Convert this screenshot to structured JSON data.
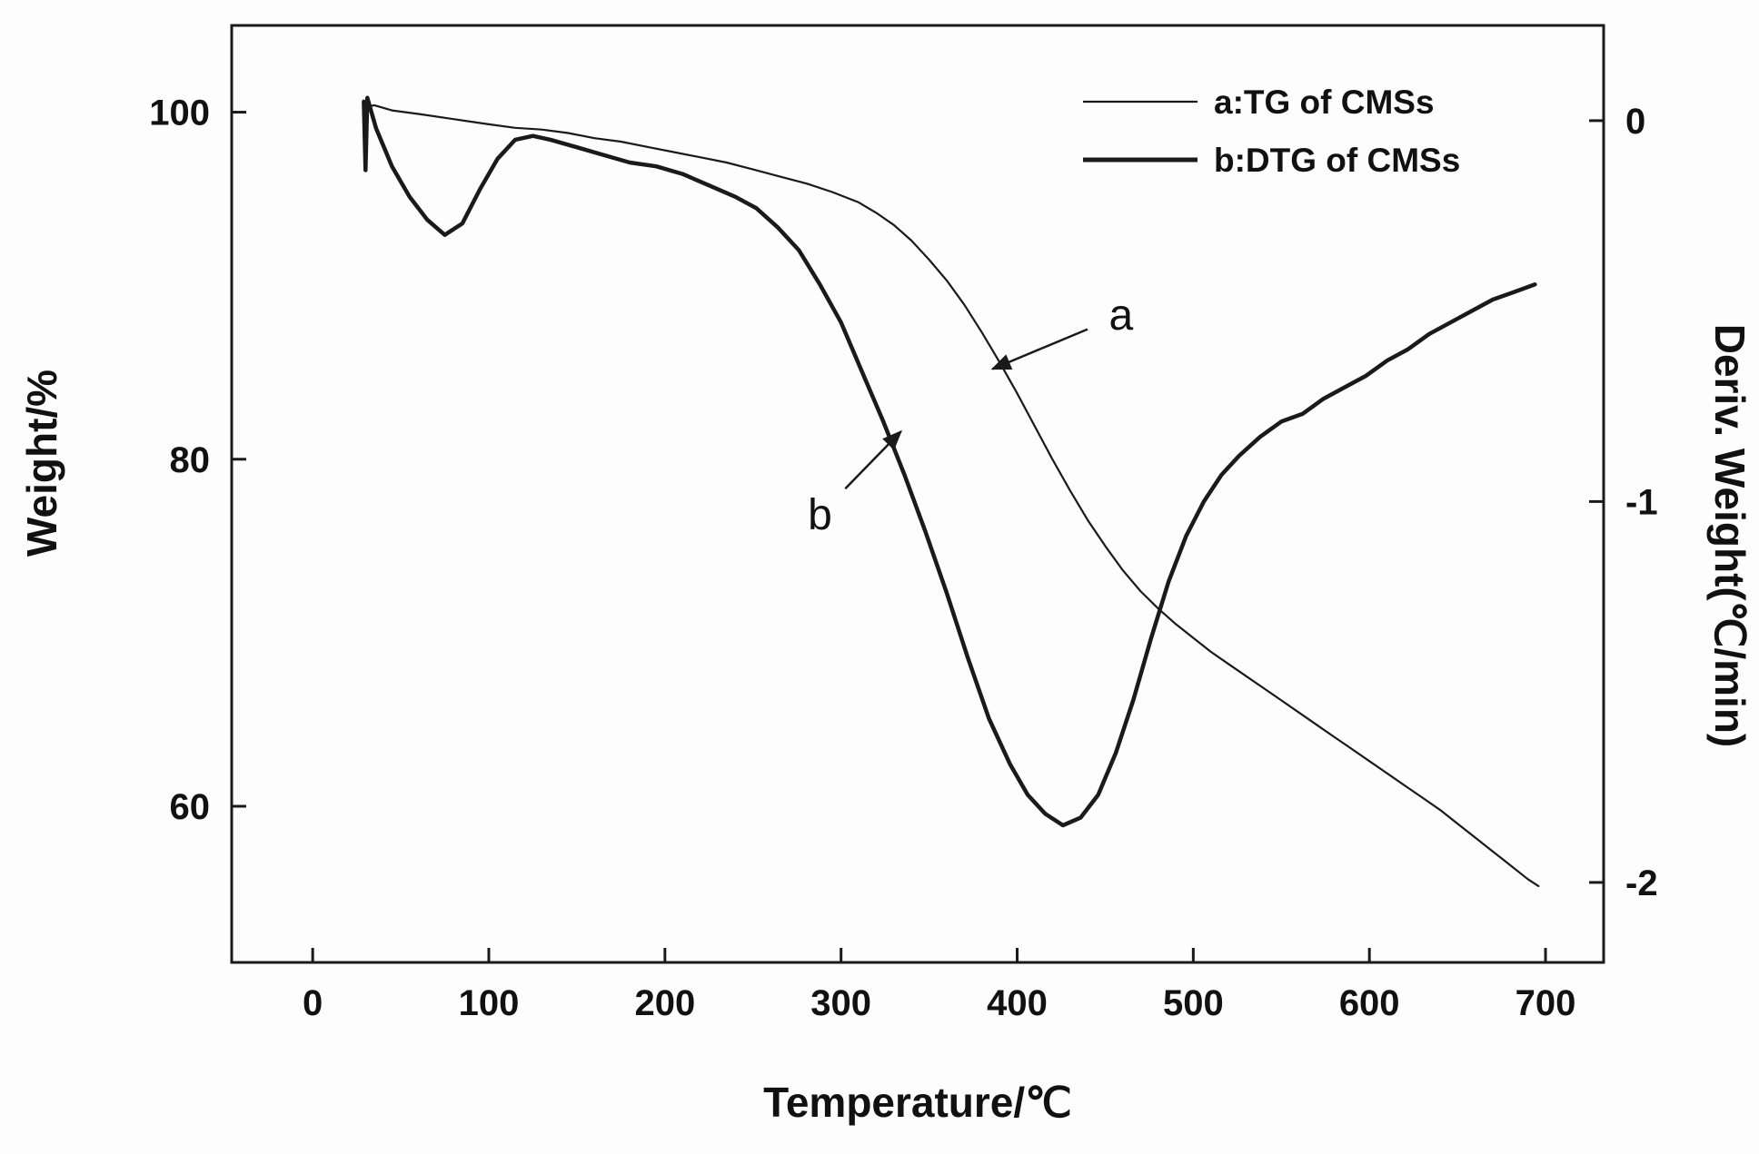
{
  "figure": {
    "background": "#fdfdfd",
    "line_color": "#1a1a1a",
    "text_color": "#111111"
  },
  "chart_data": {
    "type": "line",
    "title": "",
    "xlabel": "Temperature/℃",
    "ylabel_left": "Weight/%",
    "ylabel_right": "Deriv. Weight(℃/min)",
    "x_range": [
      -46,
      733
    ],
    "y_left_range": [
      51,
      105
    ],
    "y_right_range": [
      -2.21,
      0.25
    ],
    "x_ticks": [
      0,
      100,
      200,
      300,
      400,
      500,
      600,
      700
    ],
    "y_left_ticks": [
      60,
      80,
      100
    ],
    "y_right_ticks": [
      0,
      -1,
      -2
    ],
    "grid": false,
    "legend_position": "top-right-inside",
    "legend": [
      {
        "label": "a:TG of CMSs",
        "line_width": 2.2
      },
      {
        "label": "b:DTG of CMSs",
        "line_width": 5
      }
    ],
    "series": [
      {
        "name": "a:TG of CMSs",
        "dn": "tg-curve",
        "axis": "left",
        "line_width": 2.2,
        "points": [
          [
            30,
            100.3
          ],
          [
            35,
            100.4
          ],
          [
            45,
            100.1
          ],
          [
            60,
            99.9
          ],
          [
            80,
            99.6
          ],
          [
            100,
            99.3
          ],
          [
            115,
            99.1
          ],
          [
            130,
            99.0
          ],
          [
            145,
            98.8
          ],
          [
            160,
            98.5
          ],
          [
            175,
            98.3
          ],
          [
            190,
            98.0
          ],
          [
            205,
            97.7
          ],
          [
            220,
            97.4
          ],
          [
            235,
            97.1
          ],
          [
            250,
            96.7
          ],
          [
            265,
            96.3
          ],
          [
            280,
            95.9
          ],
          [
            295,
            95.4
          ],
          [
            310,
            94.8
          ],
          [
            320,
            94.2
          ],
          [
            330,
            93.5
          ],
          [
            340,
            92.6
          ],
          [
            350,
            91.5
          ],
          [
            360,
            90.3
          ],
          [
            370,
            88.9
          ],
          [
            380,
            87.3
          ],
          [
            390,
            85.6
          ],
          [
            400,
            83.8
          ],
          [
            410,
            81.9
          ],
          [
            420,
            80.0
          ],
          [
            430,
            78.2
          ],
          [
            440,
            76.5
          ],
          [
            450,
            75.0
          ],
          [
            460,
            73.6
          ],
          [
            470,
            72.4
          ],
          [
            480,
            71.4
          ],
          [
            490,
            70.5
          ],
          [
            500,
            69.7
          ],
          [
            510,
            68.9
          ],
          [
            520,
            68.2
          ],
          [
            530,
            67.5
          ],
          [
            540,
            66.8
          ],
          [
            550,
            66.1
          ],
          [
            560,
            65.4
          ],
          [
            570,
            64.7
          ],
          [
            580,
            64.0
          ],
          [
            590,
            63.3
          ],
          [
            600,
            62.6
          ],
          [
            610,
            61.9
          ],
          [
            620,
            61.2
          ],
          [
            630,
            60.5
          ],
          [
            640,
            59.8
          ],
          [
            650,
            59.0
          ],
          [
            660,
            58.2
          ],
          [
            670,
            57.4
          ],
          [
            680,
            56.6
          ],
          [
            690,
            55.8
          ],
          [
            696,
            55.4
          ]
        ]
      },
      {
        "name": "b:DTG of CMSs",
        "dn": "dtg-curve",
        "axis": "right",
        "line_width": 4.5,
        "points": [
          [
            29,
            0.05
          ],
          [
            30,
            -0.13
          ],
          [
            31,
            0.06
          ],
          [
            36,
            -0.02
          ],
          [
            45,
            -0.12
          ],
          [
            55,
            -0.2
          ],
          [
            65,
            -0.26
          ],
          [
            75,
            -0.3
          ],
          [
            85,
            -0.27
          ],
          [
            95,
            -0.18
          ],
          [
            105,
            -0.1
          ],
          [
            115,
            -0.05
          ],
          [
            125,
            -0.04
          ],
          [
            135,
            -0.05
          ],
          [
            150,
            -0.07
          ],
          [
            165,
            -0.09
          ],
          [
            180,
            -0.11
          ],
          [
            195,
            -0.12
          ],
          [
            210,
            -0.14
          ],
          [
            225,
            -0.17
          ],
          [
            240,
            -0.2
          ],
          [
            252,
            -0.23
          ],
          [
            264,
            -0.28
          ],
          [
            276,
            -0.34
          ],
          [
            288,
            -0.43
          ],
          [
            300,
            -0.53
          ],
          [
            312,
            -0.66
          ],
          [
            324,
            -0.79
          ],
          [
            336,
            -0.93
          ],
          [
            348,
            -1.08
          ],
          [
            360,
            -1.24
          ],
          [
            372,
            -1.41
          ],
          [
            384,
            -1.57
          ],
          [
            396,
            -1.69
          ],
          [
            406,
            -1.77
          ],
          [
            416,
            -1.82
          ],
          [
            426,
            -1.85
          ],
          [
            436,
            -1.83
          ],
          [
            446,
            -1.77
          ],
          [
            456,
            -1.66
          ],
          [
            466,
            -1.52
          ],
          [
            476,
            -1.36
          ],
          [
            486,
            -1.21
          ],
          [
            496,
            -1.09
          ],
          [
            506,
            -1.0
          ],
          [
            516,
            -0.93
          ],
          [
            526,
            -0.88
          ],
          [
            538,
            -0.83
          ],
          [
            550,
            -0.79
          ],
          [
            562,
            -0.77
          ],
          [
            574,
            -0.73
          ],
          [
            586,
            -0.7
          ],
          [
            598,
            -0.67
          ],
          [
            610,
            -0.63
          ],
          [
            622,
            -0.6
          ],
          [
            634,
            -0.56
          ],
          [
            646,
            -0.53
          ],
          [
            658,
            -0.5
          ],
          [
            670,
            -0.47
          ],
          [
            682,
            -0.45
          ],
          [
            694,
            -0.43
          ]
        ]
      }
    ],
    "annotations": [
      {
        "text": "a",
        "axis": "left",
        "label_at": [
          459,
          88.3
        ],
        "arrow_to": [
          386,
          85.2
        ]
      },
      {
        "text": "b",
        "axis": "left",
        "label_at": [
          288,
          76.8
        ],
        "arrow_to": [
          334,
          81.6
        ]
      }
    ]
  }
}
